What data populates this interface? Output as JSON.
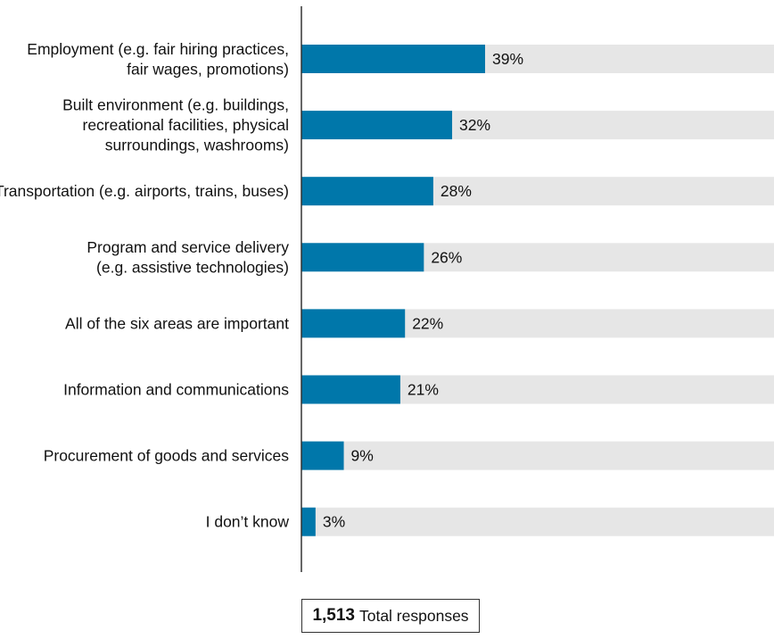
{
  "chart_data": {
    "type": "bar",
    "orientation": "horizontal",
    "categories": [
      [
        "Employment (e.g. fair hiring practices,",
        "fair wages, promotions)"
      ],
      [
        "Built environment (e.g. buildings,",
        "recreational facilities, physical",
        "surroundings, washrooms)"
      ],
      [
        "Transportation (e.g. airports, trains, buses)"
      ],
      [
        "Program and service delivery",
        "(e.g. assistive technologies)"
      ],
      [
        "All of the six areas are important"
      ],
      [
        "Information and communications"
      ],
      [
        "Procurement of goods and services"
      ],
      [
        "I don’t know"
      ]
    ],
    "values": [
      39,
      32,
      28,
      26,
      22,
      21,
      9,
      3
    ],
    "value_labels": [
      "39%",
      "32%",
      "28%",
      "26%",
      "22%",
      "21%",
      "9%",
      "3%"
    ],
    "xlim": [
      0,
      100
    ],
    "colors": {
      "bar": "#0077aa",
      "track": "#e6e6e6",
      "axis": "#333333"
    }
  },
  "footer": {
    "total_number": "1,513",
    "total_label": "Total responses"
  }
}
